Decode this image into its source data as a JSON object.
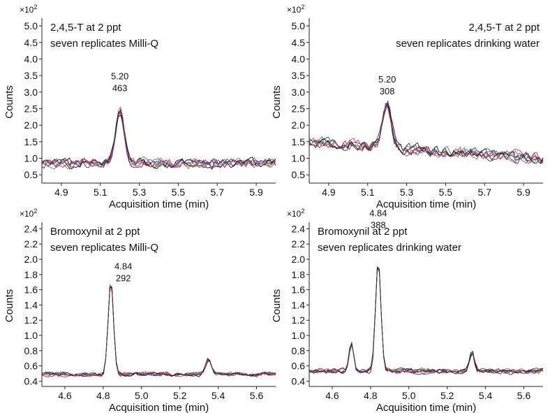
{
  "series_colors": [
    "#e4222b",
    "#2a9d3a",
    "#2433a8",
    "#8a3b9e",
    "#111111",
    "#d9464e",
    "#3a3a3a"
  ],
  "chart_data": [
    {
      "type": "line",
      "title": [
        "2,4,5-T at 2 ppt",
        "seven replicates Milli-Q"
      ],
      "title_align": "left",
      "xlabel": "Acquisition time (min)",
      "ylabel": "Counts",
      "scale_label": "×10",
      "scale_exp": "2",
      "xlim": [
        4.8,
        6.0
      ],
      "ylim": [
        0.25,
        5.15
      ],
      "xticks": [
        "4.9",
        "5.1",
        "5.3",
        "5.5",
        "5.7",
        "5.9"
      ],
      "yticks": [
        "0.5",
        "1.0",
        "1.5",
        "2.0",
        "2.5",
        "3.0",
        "3.5",
        "4.0",
        "4.5",
        "5.0"
      ],
      "baseline": 0.85,
      "noise": 0.22,
      "peaks": [
        {
          "rt": 5.2,
          "height": 1.75,
          "width": 0.022
        },
        {
          "rt": 5.31,
          "height": 0.12,
          "width": 0.02
        }
      ],
      "annotation": {
        "rt": "5.20",
        "value": "463",
        "x": 5.2,
        "y": 3.05
      },
      "replicates": 7
    },
    {
      "type": "line",
      "title": [
        "2,4,5-T at 2 ppt",
        "seven replicates drinking water"
      ],
      "title_align": "right",
      "xlabel": "Acquisition time (min)",
      "ylabel": "Counts",
      "scale_label": "×10",
      "scale_exp": "2",
      "xlim": [
        4.8,
        6.0
      ],
      "ylim": [
        0.25,
        5.15
      ],
      "xticks": [
        "4.9",
        "5.1",
        "5.3",
        "5.5",
        "5.7",
        "5.9"
      ],
      "yticks": [
        "0.5",
        "1.0",
        "1.5",
        "2.0",
        "2.5",
        "3.0",
        "3.5",
        "4.0",
        "4.5",
        "5.0"
      ],
      "baseline_start": 1.5,
      "baseline_end": 1.0,
      "noise": 0.25,
      "peaks": [
        {
          "rt": 5.2,
          "height": 1.4,
          "width": 0.022
        }
      ],
      "annotation": {
        "rt": "5.20",
        "value": "308",
        "x": 5.2,
        "y": 2.95
      },
      "replicates": 7
    },
    {
      "type": "line",
      "title": [
        "Bromoxynil at 2 ppt",
        "seven replicates Milli-Q"
      ],
      "title_align": "left",
      "xlabel": "Acquisition time (min)",
      "ylabel": "Counts",
      "scale_label": "×10",
      "scale_exp": "2",
      "xlim": [
        4.48,
        5.7
      ],
      "ylim": [
        0.33,
        2.45
      ],
      "xticks": [
        "4.6",
        "4.8",
        "5.0",
        "5.2",
        "5.4",
        "5.6"
      ],
      "yticks": [
        "0.4",
        "0.6",
        "0.8",
        "1.0",
        "1.2",
        "1.4",
        "1.6",
        "1.8",
        "2.0",
        "2.2",
        "2.4"
      ],
      "baseline": 0.49,
      "noise": 0.04,
      "peaks": [
        {
          "rt": 4.84,
          "height": 1.3,
          "width": 0.014
        },
        {
          "rt": 5.35,
          "height": 0.2,
          "width": 0.015
        }
      ],
      "annotation": {
        "rt": "4.84",
        "value": "292",
        "x": 4.905,
        "y": 1.72
      },
      "replicates": 7
    },
    {
      "type": "line",
      "title": [
        "Bromoxynil at 2 ppt",
        "seven replicates drinking water"
      ],
      "title_align": "left",
      "xlabel": "Acquisition time (min)",
      "ylabel": "Counts",
      "scale_label": "×10",
      "scale_exp": "2",
      "xlim": [
        4.48,
        5.7
      ],
      "ylim": [
        0.33,
        2.45
      ],
      "xticks": [
        "4.6",
        "4.8",
        "5.0",
        "5.2",
        "5.4",
        "5.6"
      ],
      "yticks": [
        "0.4",
        "0.6",
        "0.8",
        "1.0",
        "1.2",
        "1.4",
        "1.6",
        "1.8",
        "2.0",
        "2.2",
        "2.4"
      ],
      "baseline": 0.53,
      "noise": 0.05,
      "peaks": [
        {
          "rt": 4.84,
          "height": 1.5,
          "width": 0.014
        },
        {
          "rt": 4.7,
          "height": 0.4,
          "width": 0.012
        },
        {
          "rt": 5.33,
          "height": 0.25,
          "width": 0.012
        }
      ],
      "annotation": {
        "rt": "4.84",
        "value": "388",
        "x": 4.84,
        "y": 2.42
      },
      "replicates": 7
    }
  ]
}
